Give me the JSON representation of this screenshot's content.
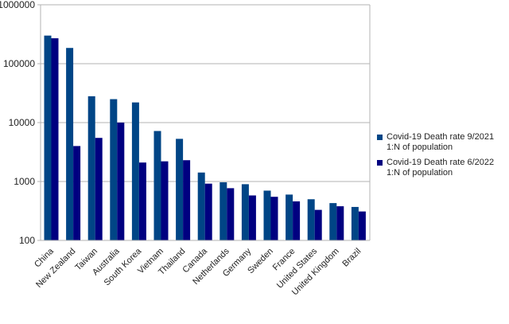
{
  "chart_data": {
    "type": "bar",
    "scale": "log",
    "ylim": [
      100,
      1000000
    ],
    "y_ticks": [
      "100",
      "1000",
      "10000",
      "100000",
      "1000000"
    ],
    "grid": true,
    "legend_position": "right",
    "categories": [
      "China",
      "New Zealand",
      "Taiwan",
      "Australia",
      "South Korea",
      "Vietnam",
      "Thailand",
      "Canada",
      "Netherlands",
      "Germany",
      "Sweden",
      "France",
      "United States",
      "United Kingdom",
      "Brazil"
    ],
    "series": [
      {
        "name": "Covid-19 Death rate 9/2021 1:N of population",
        "color": "#004586",
        "values": [
          300000,
          185000,
          28000,
          25000,
          22000,
          7200,
          5300,
          1420,
          970,
          900,
          700,
          600,
          500,
          430,
          370
        ]
      },
      {
        "name": "Covid-19 Death rate 6/2022 1:N of population",
        "color": "#000080",
        "values": [
          270000,
          4000,
          5500,
          10000,
          2100,
          2200,
          2300,
          920,
          770,
          580,
          550,
          460,
          330,
          380,
          310
        ]
      }
    ]
  }
}
